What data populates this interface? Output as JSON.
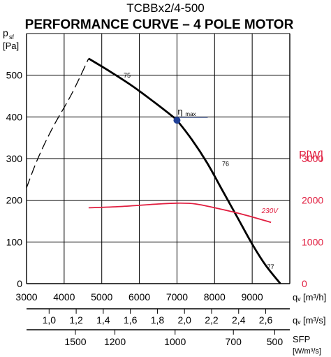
{
  "chart_data": {
    "type": "line",
    "title": "TCBBx2/4-500",
    "subtitle": "PERFORMANCE CURVE    – 4 POLE MOTOR",
    "xlabel": "qᵥ [m³/h]",
    "ylabel_left": {
      "symbol": "p",
      "sub": "sf",
      "unit": "[Pa]"
    },
    "ylabel_right": "P[W]",
    "xlim": [
      3000,
      10000
    ],
    "ylim": [
      0,
      600
    ],
    "ylim_right": [
      0,
      6000
    ],
    "grid": true,
    "x_ticks": [
      3000,
      4000,
      5000,
      6000,
      7000,
      8000,
      9000
    ],
    "y_ticks": [
      0,
      100,
      200,
      300,
      400,
      500
    ],
    "y2_ticks": [
      0,
      1000,
      2000,
      3000
    ],
    "colors": {
      "axes": "#000000",
      "power": "#e11d3f",
      "marker": "#1f3f96"
    },
    "series": [
      {
        "style": "dashed",
        "x": [
          3000,
          3300,
          3700,
          4200,
          4650
        ],
        "y": [
          230,
          300,
          375,
          455,
          540
        ]
      },
      {
        "style": "solid",
        "x": [
          4650,
          5200,
          5800,
          6400,
          6900,
          7000,
          7400,
          7800,
          8200,
          8600,
          9000,
          9350,
          9750
        ],
        "y": [
          540,
          510,
          475,
          435,
          400,
          392,
          345,
          290,
          225,
          160,
          95,
          45,
          0
        ]
      }
    ],
    "power_series": {
      "label": "230V",
      "x": [
        4650,
        5500,
        6500,
        7000,
        7500,
        8200,
        8800,
        9500
      ],
      "y": [
        1820,
        1850,
        1910,
        1930,
        1910,
        1780,
        1650,
        1470
      ]
    },
    "annotations": [
      {
        "text": "75",
        "x": 5580,
        "y": 494
      },
      {
        "text": "76",
        "x": 8200,
        "y": 282
      },
      {
        "text": "77",
        "x": 9400,
        "y": 35
      }
    ],
    "eta_max": {
      "x": 7000,
      "y": 392,
      "symbol": "η",
      "label": "max"
    },
    "secondary_axes": [
      {
        "unit": "qᵥ [m³/s]",
        "ticks": [
          1.0,
          1.2,
          1.4,
          1.6,
          1.8,
          2.0,
          2.2,
          2.4,
          2.6
        ],
        "labels": [
          "1,0",
          "1,2",
          "1,4",
          "1,6",
          "1,8",
          "2,0",
          "2,2",
          "2,4",
          "2,6"
        ]
      },
      {
        "unit_top": "SFP",
        "unit_bottom": "[W/m³/s]",
        "ticks": [
          1500,
          1200,
          1000,
          700,
          500
        ],
        "labels": [
          "1500",
          "1200",
          "1000",
          "700",
          "500"
        ],
        "at_q_m3h": [
          4300,
          5350,
          6950,
          8500,
          9600
        ]
      }
    ]
  }
}
